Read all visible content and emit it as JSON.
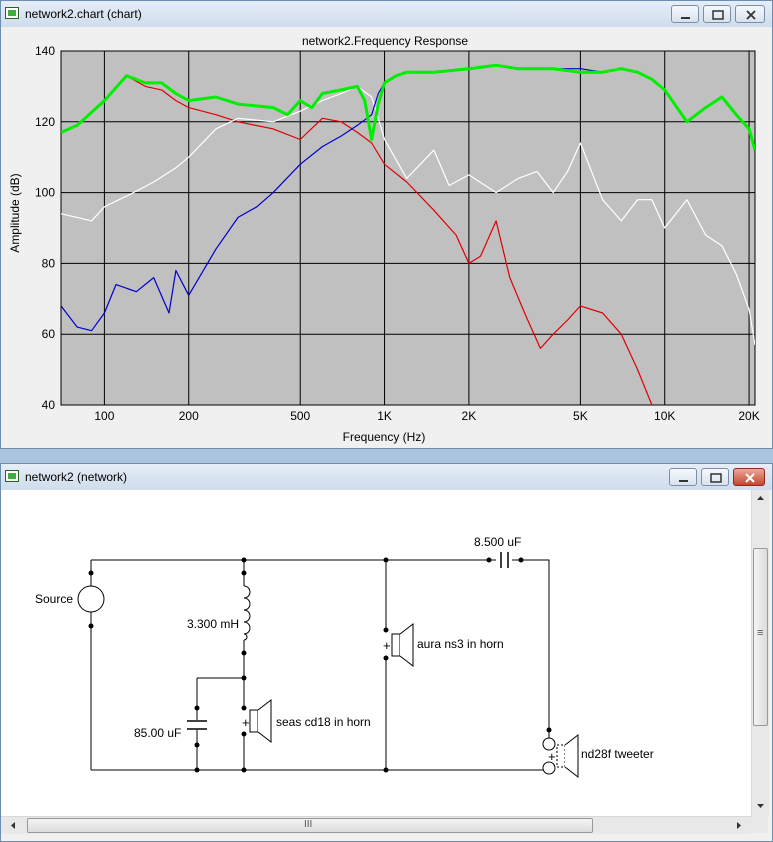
{
  "chart_window": {
    "title": "network2.chart (chart)"
  },
  "network_window": {
    "title": "network2 (network)"
  },
  "colors": {
    "plot_bg": "#c0c0c0",
    "red_series": "#e00000",
    "white_series": "#ffffff",
    "blue_series": "#0000d0",
    "green_series": "#00ee00",
    "dark_series": "#404020"
  },
  "chart_data": {
    "type": "line",
    "title": "network2.Frequency Response",
    "xlabel": "Frequency (Hz)",
    "ylabel": "Amplitude (dB)",
    "xscale": "log",
    "xlim": [
      70,
      21000
    ],
    "ylim": [
      40,
      140
    ],
    "grid": true,
    "x_ticks": [
      100,
      200,
      500,
      1000,
      2000,
      5000,
      10000,
      20000
    ],
    "x_tick_labels": [
      "100",
      "200",
      "500",
      "1K",
      "2K",
      "5K",
      "10K",
      "20K"
    ],
    "y_ticks": [
      40,
      60,
      80,
      100,
      120,
      140
    ],
    "y_tick_labels": [
      "40",
      "60",
      "80",
      "100",
      "120",
      "140"
    ],
    "series": [
      {
        "color": "#e00000",
        "x": [
          70,
          80,
          100,
          120,
          140,
          160,
          180,
          200,
          250,
          300,
          400,
          500,
          600,
          700,
          800,
          900,
          1000,
          1200,
          1500,
          1800,
          2000,
          2200,
          2500,
          2800,
          3200,
          3600,
          4000,
          4500,
          5000,
          6000,
          7000,
          8000,
          9000
        ],
        "y": [
          117,
          119,
          126,
          133,
          130,
          129,
          126,
          124,
          122,
          120,
          118,
          115,
          121,
          120,
          117,
          114,
          108,
          103,
          95,
          88,
          80,
          82,
          92,
          76,
          65,
          56,
          60,
          64,
          68,
          66,
          60,
          50,
          40
        ]
      },
      {
        "color": "#ffffff",
        "x": [
          70,
          80,
          90,
          100,
          120,
          150,
          180,
          200,
          250,
          300,
          400,
          500,
          600,
          700,
          800,
          900,
          1000,
          1200,
          1500,
          1700,
          2000,
          2500,
          3000,
          3500,
          4000,
          4500,
          5000,
          6000,
          7000,
          8000,
          9000,
          10000,
          12000,
          14000,
          16000,
          18000,
          20000,
          21000
        ],
        "y": [
          94,
          93,
          92,
          96,
          99,
          103,
          107,
          110,
          118,
          121,
          120,
          123,
          126,
          128,
          130,
          127,
          115,
          104,
          112,
          102,
          105,
          100,
          104,
          106,
          100,
          106,
          114,
          98,
          92,
          98,
          98,
          90,
          98,
          88,
          85,
          77,
          67,
          57
        ]
      },
      {
        "color": "#0000d0",
        "x": [
          70,
          80,
          90,
          100,
          110,
          130,
          150,
          170,
          180,
          200,
          250,
          300,
          350,
          400,
          500,
          600,
          700,
          800,
          900,
          950,
          1000,
          1100,
          1200,
          1500,
          2000,
          2500,
          3000,
          4000,
          5000,
          6000,
          7000,
          8000,
          9000,
          10000,
          12000,
          14000,
          16000,
          18000,
          20000,
          21000
        ],
        "y": [
          68,
          62,
          61,
          66,
          74,
          72,
          76,
          66,
          78,
          71,
          84,
          93,
          96,
          100,
          108,
          113,
          116,
          119,
          122,
          128,
          131,
          133,
          134,
          134,
          135,
          136,
          135,
          135,
          135,
          134,
          135,
          134,
          132,
          129,
          120,
          124,
          127,
          122,
          118,
          112
        ]
      },
      {
        "color": "#00ee00",
        "x": [
          70,
          80,
          100,
          120,
          140,
          160,
          180,
          200,
          250,
          300,
          400,
          450,
          500,
          550,
          600,
          700,
          800,
          850,
          900,
          950,
          1000,
          1100,
          1200,
          1500,
          2000,
          2500,
          3000,
          4000,
          5000,
          6000,
          7000,
          8000,
          9000,
          10000,
          12000,
          14000,
          16000,
          18000,
          20000,
          21000
        ],
        "y": [
          117,
          119,
          126,
          133,
          131,
          131,
          128,
          126,
          127,
          125,
          124,
          122,
          126,
          124,
          128,
          129,
          130,
          126,
          115,
          125,
          131,
          133,
          134,
          134,
          135,
          136,
          135,
          135,
          134,
          134,
          135,
          134,
          132,
          129,
          120,
          124,
          127,
          122,
          118,
          112
        ]
      }
    ]
  },
  "circuit": {
    "source_label": "Source",
    "inductor_label": "3.300 mH",
    "capacitor1_label": "85.00 uF",
    "capacitor2_label": "8.500 uF",
    "driver1_label": "seas cd18 in horn",
    "driver2_label": "aura ns3 in horn",
    "driver3_label": "nd28f tweeter",
    "plus_sign": "+"
  },
  "scrollbar": {
    "v_grip": "≡",
    "h_grip": "III"
  }
}
